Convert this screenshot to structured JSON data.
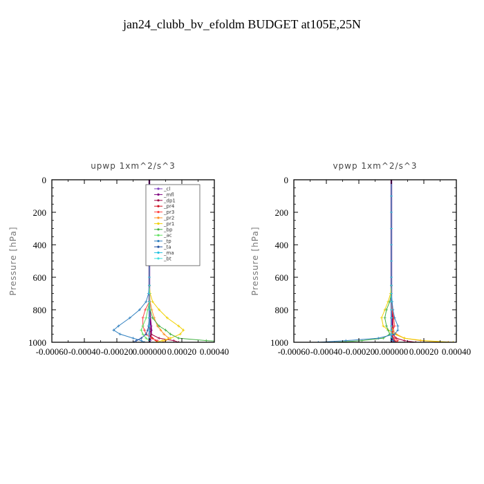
{
  "figure_title": "jan24_clubb_bv_efoldm  BUDGET at105E,25N",
  "chart_data": [
    {
      "type": "line",
      "title": "upwp   1xm^2/s^3",
      "xlabel": "",
      "ylabel": "Pressure [hPa]",
      "xlim": [
        -0.0006,
        0.0004
      ],
      "ylim": [
        1000,
        0
      ],
      "x_ticks": [
        -0.0006,
        -0.0004,
        -0.0002,
        0.0,
        0.0002,
        0.0004
      ],
      "x_tick_labels": [
        "-0.00060",
        "-0.00040",
        "-0.00020",
        "0.000000",
        "0.00020",
        "0.00040"
      ],
      "y_ticks": [
        0,
        200,
        400,
        600,
        800,
        1000
      ],
      "y_tick_labels": [
        "0",
        "200",
        "400",
        "600",
        "800",
        "1000"
      ],
      "legend_position": "top-right",
      "pressure": [
        0,
        100,
        200,
        300,
        400,
        500,
        600,
        650,
        700,
        750,
        800,
        850,
        900,
        925,
        950,
        975,
        990,
        1000
      ],
      "series": [
        {
          "name": "_cl",
          "color": "#8040c0",
          "values": [
            0,
            0,
            0,
            0,
            0,
            0,
            0,
            0,
            0,
            0,
            0,
            0,
            0,
            0,
            0,
            0,
            0,
            0
          ]
        },
        {
          "name": "_mfl",
          "color": "#800080",
          "values": [
            0,
            0,
            0,
            0,
            0,
            0,
            0,
            0,
            0,
            0,
            2e-06,
            5e-06,
            1e-05,
            1.2e-05,
            1e-05,
            8e-06,
            5e-06,
            0
          ]
        },
        {
          "name": "_dp1",
          "color": "#a00040",
          "values": [
            0,
            0,
            0,
            0,
            0,
            0,
            0,
            0,
            0,
            0,
            0,
            0,
            0,
            5e-06,
            1e-05,
            6e-05,
            0.00015,
            0.00018
          ]
        },
        {
          "name": "_pr4",
          "color": "#d01020",
          "values": [
            0,
            0,
            0,
            0,
            0,
            0,
            0,
            0,
            0,
            0,
            0,
            0,
            0,
            0,
            0,
            2e-05,
            4e-05,
            5e-05
          ]
        },
        {
          "name": "_pr3",
          "color": "#ff4040",
          "values": [
            0,
            0,
            0,
            0,
            0,
            0,
            0,
            0,
            0,
            0,
            -2.5e-05,
            -4e-05,
            -4e-05,
            -3e-05,
            -2e-05,
            1e-05,
            5e-05,
            4e-05
          ]
        },
        {
          "name": "_pr2",
          "color": "#ff9020",
          "values": [
            0,
            0,
            0,
            0,
            0,
            0,
            0,
            0,
            0,
            5e-06,
            1.5e-05,
            3e-05,
            5e-05,
            7e-05,
            9e-05,
            0.00012,
            0.0001,
            8e-05
          ]
        },
        {
          "name": "_pr1",
          "color": "#f0d000",
          "values": [
            0,
            0,
            0,
            0,
            0,
            0,
            0,
            0,
            5e-06,
            2e-05,
            6e-05,
            0.00011,
            0.00018,
            0.00021,
            0.00019,
            0.00013,
            8e-05,
            4e-05
          ]
        },
        {
          "name": "_bp",
          "color": "#40b040",
          "values": [
            0,
            0,
            0,
            0,
            0,
            0,
            0,
            0,
            0,
            0,
            5e-06,
            2e-05,
            6e-05,
            0.0001,
            0.00013,
            0.00018,
            0.00035,
            0.00055
          ]
        },
        {
          "name": "_ac",
          "color": "#60e060",
          "values": [
            0,
            0,
            0,
            0,
            0,
            0,
            0,
            0,
            0,
            0,
            -1e-05,
            -2e-05,
            -4e-05,
            -5e-05,
            -4e-05,
            -2e-05,
            0,
            0
          ]
        },
        {
          "name": "_tp",
          "color": "#3080c0",
          "values": [
            0,
            0,
            0,
            0,
            0,
            0,
            0,
            0,
            -5e-06,
            -2e-05,
            -6e-05,
            -0.00012,
            -0.00019,
            -0.00022,
            -0.00018,
            -0.0001,
            -5e-05,
            -3e-05
          ]
        },
        {
          "name": "_ta",
          "color": "#2050a0",
          "values": [
            0,
            0,
            0,
            0,
            0,
            0,
            0,
            0,
            0,
            0,
            0,
            0,
            -5e-06,
            -1e-05,
            -2e-05,
            -5e-05,
            -8e-05,
            -0.0001
          ]
        },
        {
          "name": "_ma",
          "color": "#20c0e0",
          "values": [
            0,
            0,
            0,
            0,
            0,
            0,
            0,
            0,
            0,
            0,
            0,
            0,
            0,
            0,
            0,
            0,
            0,
            0
          ]
        },
        {
          "name": "_bt",
          "color": "#40e0e0",
          "values": [
            0,
            0,
            0,
            0,
            0,
            0,
            0,
            0,
            0,
            0,
            0,
            0,
            0,
            0,
            0,
            0,
            0,
            0
          ]
        }
      ]
    },
    {
      "type": "line",
      "title": "vpwp   1xm^2/s^3",
      "xlabel": "",
      "ylabel": "Pressure [hPa]",
      "xlim": [
        -0.0006,
        0.0004
      ],
      "ylim": [
        1000,
        0
      ],
      "x_ticks": [
        -0.0006,
        -0.0004,
        -0.0002,
        0.0,
        0.0002,
        0.0004
      ],
      "x_tick_labels": [
        "-0.00060",
        "-0.00040",
        "-0.00020",
        "0.000000",
        "0.00020",
        "0.00040"
      ],
      "y_ticks": [
        0,
        200,
        400,
        600,
        800,
        1000
      ],
      "y_tick_labels": [
        "0",
        "200",
        "400",
        "600",
        "800",
        "1000"
      ],
      "pressure": [
        0,
        100,
        200,
        300,
        400,
        500,
        600,
        650,
        700,
        750,
        800,
        850,
        900,
        925,
        950,
        975,
        990,
        1000
      ],
      "series": [
        {
          "name": "_cl",
          "color": "#8040c0",
          "values": [
            0,
            0,
            0,
            0,
            0,
            0,
            0,
            0,
            0,
            0,
            0,
            0,
            0,
            0,
            0,
            0,
            0,
            0
          ]
        },
        {
          "name": "_mfl",
          "color": "#800080",
          "values": [
            0,
            0,
            0,
            0,
            0,
            0,
            0,
            0,
            0,
            0,
            2e-06,
            5e-06,
            8e-06,
            1e-05,
            8e-06,
            5e-06,
            3e-06,
            0
          ]
        },
        {
          "name": "_dp1",
          "color": "#a00040",
          "values": [
            0,
            0,
            0,
            0,
            0,
            0,
            0,
            0,
            0,
            0,
            0,
            0,
            0,
            5e-06,
            1e-05,
            3e-05,
            8e-05,
            0.00015
          ]
        },
        {
          "name": "_pr4",
          "color": "#d01020",
          "values": [
            0,
            0,
            0,
            0,
            0,
            0,
            0,
            0,
            0,
            0,
            5e-06,
            1e-05,
            1e-05,
            5e-06,
            0,
            1e-05,
            2e-05,
            3e-05
          ]
        },
        {
          "name": "_pr3",
          "color": "#ff4040",
          "values": [
            0,
            0,
            0,
            0,
            0,
            0,
            0,
            0,
            0,
            0,
            5e-06,
            1.5e-05,
            2e-05,
            1e-05,
            0,
            2e-05,
            4e-05,
            3e-05
          ]
        },
        {
          "name": "_pr2",
          "color": "#ff9020",
          "values": [
            0,
            0,
            0,
            0,
            0,
            0,
            0,
            0,
            0,
            0,
            0,
            0,
            0,
            1e-05,
            3e-05,
            8e-05,
            0.00018,
            0.00035
          ]
        },
        {
          "name": "_pr1",
          "color": "#f0d000",
          "values": [
            0,
            0,
            0,
            0,
            0,
            0,
            0,
            0,
            -5e-06,
            -2e-05,
            -4e-05,
            -6e-05,
            -5e-05,
            -2e-05,
            2e-05,
            8e-05,
            0.0002,
            0.00038
          ]
        },
        {
          "name": "_bp",
          "color": "#40b040",
          "values": [
            0,
            0,
            0,
            0,
            0,
            0,
            0,
            0,
            0,
            -1e-05,
            -3e-05,
            -4e-05,
            -3e-05,
            -2e-05,
            -1e-05,
            -5e-05,
            -0.00018,
            -0.00035
          ]
        },
        {
          "name": "_ac",
          "color": "#60e060",
          "values": [
            0,
            0,
            0,
            0,
            0,
            0,
            0,
            0,
            0,
            0,
            0,
            0,
            0,
            0,
            0,
            0,
            0,
            0
          ]
        },
        {
          "name": "_tp",
          "color": "#3080c0",
          "values": [
            0,
            0,
            0,
            0,
            0,
            0,
            0,
            0,
            0,
            5e-06,
            1e-05,
            2e-05,
            4e-05,
            4e-05,
            2e-05,
            -8e-05,
            -0.00028,
            -0.00045
          ]
        },
        {
          "name": "_ta",
          "color": "#2050a0",
          "values": [
            0,
            0,
            0,
            0,
            0,
            0,
            0,
            0,
            0,
            0,
            0,
            0,
            0,
            0,
            0,
            5e-06,
            1e-05,
            2e-05
          ]
        },
        {
          "name": "_ma",
          "color": "#20c0e0",
          "values": [
            0,
            0,
            0,
            0,
            0,
            0,
            0,
            0,
            0,
            0,
            0,
            0,
            0,
            0,
            0,
            0,
            0,
            0
          ]
        },
        {
          "name": "_bt",
          "color": "#40e0e0",
          "values": [
            0,
            0,
            0,
            0,
            0,
            0,
            0,
            0,
            0,
            0,
            0,
            0,
            0,
            0,
            0,
            0,
            0,
            0
          ]
        }
      ]
    }
  ]
}
